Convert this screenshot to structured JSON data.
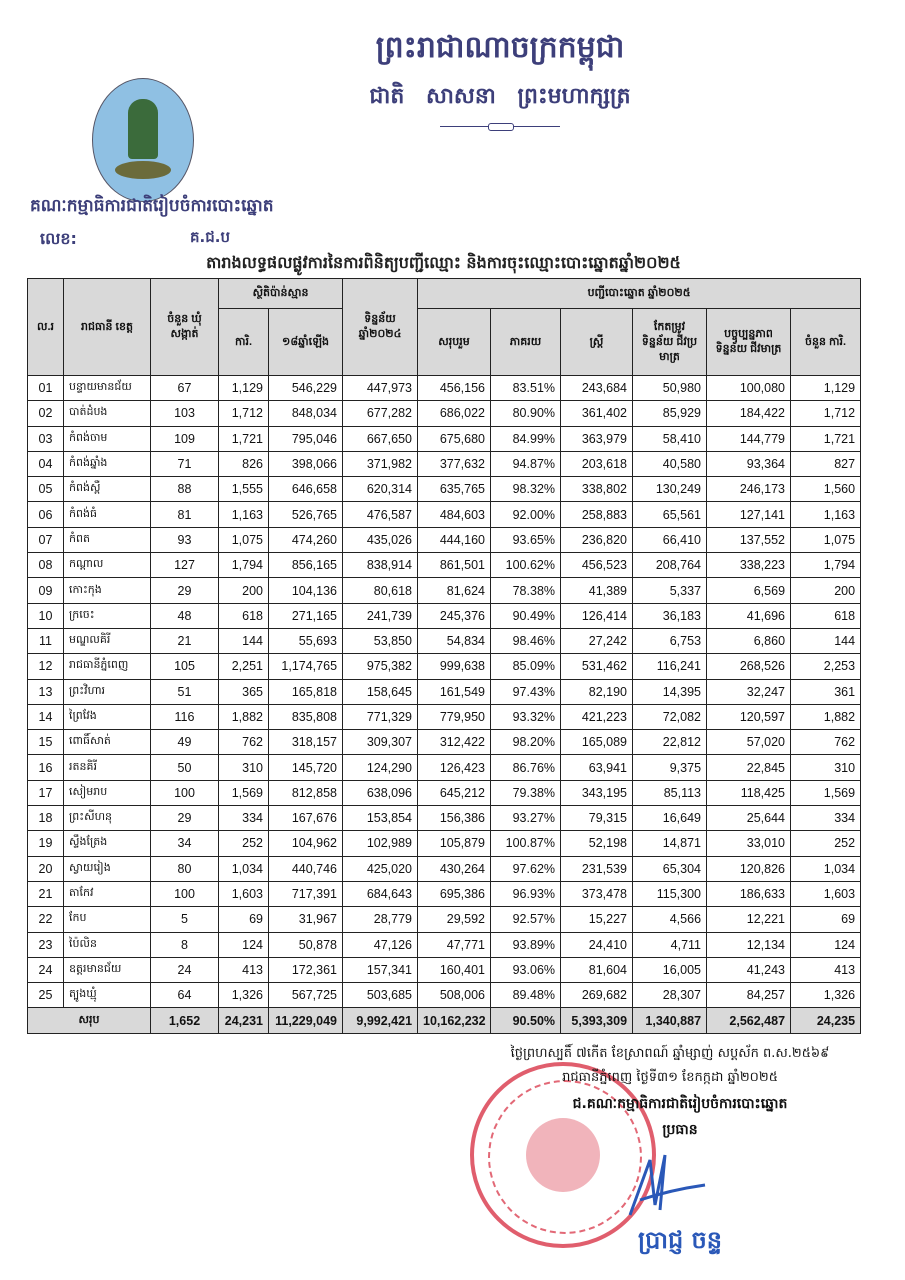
{
  "letterhead": {
    "kingdom": "ព្រះរាជាណាចក្រកម្ពុជា",
    "motto": "ជាតិ សាសនា ព្រះមហាក្សត្រ",
    "organization": "គណៈកម្មាធិការជាតិរៀបចំការបោះឆ្នោត",
    "reference_label": "លេខ:",
    "reference_number": "គ.ជ.ប"
  },
  "title": "តារាងលទ្ធផលផ្លូវការនៃការពិនិត្យបញ្ជីឈ្មោះ និងការចុះឈ្មោះបោះឆ្នោតឆ្នាំ២០២៥",
  "table": {
    "headers": {
      "no": "ល.រ",
      "province": "រាជធានី ខេត្ត",
      "communes": "ចំនួន ឃុំ សង្កាត់",
      "estimate_group": "ស្ថិតិប៉ាន់ស្មាន",
      "estimate_offices": "ការិ.",
      "estimate_18plus": "១៨ឆ្នាំឡើង",
      "data_2024": "ទិន្នន័យ ឆ្នាំ២០២៤",
      "list_group": "បញ្ជីបោះឆ្នោត ឆ្នាំ២០២៥",
      "total": "សរុបរួម",
      "percent": "ភាគរយ",
      "women": "ស្ត្រី",
      "biometric_corrected": "កែតម្រូវ ទិន្នន័យ ជីវប្រមាត្រ",
      "biometric_updated": "បច្ចុប្បន្នភាព ទិន្នន័យ ជីវមាត្រ",
      "offices": "ចំនួន ការិ."
    },
    "rows": [
      [
        "01",
        "បន្ទាយមានជ័យ",
        "67",
        "1,129",
        "546,229",
        "447,973",
        "456,156",
        "83.51%",
        "243,684",
        "50,980",
        "100,080",
        "1,129"
      ],
      [
        "02",
        "បាត់ដំបង",
        "103",
        "1,712",
        "848,034",
        "677,282",
        "686,022",
        "80.90%",
        "361,402",
        "85,929",
        "184,422",
        "1,712"
      ],
      [
        "03",
        "កំពង់ចាម",
        "109",
        "1,721",
        "795,046",
        "667,650",
        "675,680",
        "84.99%",
        "363,979",
        "58,410",
        "144,779",
        "1,721"
      ],
      [
        "04",
        "កំពង់ឆ្នាំង",
        "71",
        "826",
        "398,066",
        "371,982",
        "377,632",
        "94.87%",
        "203,618",
        "40,580",
        "93,364",
        "827"
      ],
      [
        "05",
        "កំពង់ស្ពឺ",
        "88",
        "1,555",
        "646,658",
        "620,314",
        "635,765",
        "98.32%",
        "338,802",
        "130,249",
        "246,173",
        "1,560"
      ],
      [
        "06",
        "កំពង់ធំ",
        "81",
        "1,163",
        "526,765",
        "476,587",
        "484,603",
        "92.00%",
        "258,883",
        "65,561",
        "127,141",
        "1,163"
      ],
      [
        "07",
        "កំពត",
        "93",
        "1,075",
        "474,260",
        "435,026",
        "444,160",
        "93.65%",
        "236,820",
        "66,410",
        "137,552",
        "1,075"
      ],
      [
        "08",
        "កណ្តាល",
        "127",
        "1,794",
        "856,165",
        "838,914",
        "861,501",
        "100.62%",
        "456,523",
        "208,764",
        "338,223",
        "1,794"
      ],
      [
        "09",
        "កោះកុង",
        "29",
        "200",
        "104,136",
        "80,618",
        "81,624",
        "78.38%",
        "41,389",
        "5,337",
        "6,569",
        "200"
      ],
      [
        "10",
        "ក្រចេះ",
        "48",
        "618",
        "271,165",
        "241,739",
        "245,376",
        "90.49%",
        "126,414",
        "36,183",
        "41,696",
        "618"
      ],
      [
        "11",
        "មណ្ឌលគិរី",
        "21",
        "144",
        "55,693",
        "53,850",
        "54,834",
        "98.46%",
        "27,242",
        "6,753",
        "6,860",
        "144"
      ],
      [
        "12",
        "រាជធានីភ្នំពេញ",
        "105",
        "2,251",
        "1,174,765",
        "975,382",
        "999,638",
        "85.09%",
        "531,462",
        "116,241",
        "268,526",
        "2,253"
      ],
      [
        "13",
        "ព្រះវិហារ",
        "51",
        "365",
        "165,818",
        "158,645",
        "161,549",
        "97.43%",
        "82,190",
        "14,395",
        "32,247",
        "361"
      ],
      [
        "14",
        "ព្រៃវែង",
        "116",
        "1,882",
        "835,808",
        "771,329",
        "779,950",
        "93.32%",
        "421,223",
        "72,082",
        "120,597",
        "1,882"
      ],
      [
        "15",
        "ពោធិ៍សាត់",
        "49",
        "762",
        "318,157",
        "309,307",
        "312,422",
        "98.20%",
        "165,089",
        "22,812",
        "57,020",
        "762"
      ],
      [
        "16",
        "រតនគិរី",
        "50",
        "310",
        "145,720",
        "124,290",
        "126,423",
        "86.76%",
        "63,941",
        "9,375",
        "22,845",
        "310"
      ],
      [
        "17",
        "សៀមរាប",
        "100",
        "1,569",
        "812,858",
        "638,096",
        "645,212",
        "79.38%",
        "343,195",
        "85,113",
        "118,425",
        "1,569"
      ],
      [
        "18",
        "ព្រះសីហនុ",
        "29",
        "334",
        "167,676",
        "153,854",
        "156,386",
        "93.27%",
        "79,315",
        "16,649",
        "25,644",
        "334"
      ],
      [
        "19",
        "ស្ទឹងត្រែង",
        "34",
        "252",
        "104,962",
        "102,989",
        "105,879",
        "100.87%",
        "52,198",
        "14,871",
        "33,010",
        "252"
      ],
      [
        "20",
        "ស្វាយរៀង",
        "80",
        "1,034",
        "440,746",
        "425,020",
        "430,264",
        "97.62%",
        "231,539",
        "65,304",
        "120,826",
        "1,034"
      ],
      [
        "21",
        "តាកែវ",
        "100",
        "1,603",
        "717,391",
        "684,643",
        "695,386",
        "96.93%",
        "373,478",
        "115,300",
        "186,633",
        "1,603"
      ],
      [
        "22",
        "កែប",
        "5",
        "69",
        "31,967",
        "28,779",
        "29,592",
        "92.57%",
        "15,227",
        "4,566",
        "12,221",
        "69"
      ],
      [
        "23",
        "ប៉ៃលិន",
        "8",
        "124",
        "50,878",
        "47,126",
        "47,771",
        "93.89%",
        "24,410",
        "4,711",
        "12,134",
        "124"
      ],
      [
        "24",
        "ឧត្តរមានជ័យ",
        "24",
        "413",
        "172,361",
        "157,341",
        "160,401",
        "93.06%",
        "81,604",
        "16,005",
        "41,243",
        "413"
      ],
      [
        "25",
        "ត្បូងឃ្មុំ",
        "64",
        "1,326",
        "567,725",
        "503,685",
        "508,006",
        "89.48%",
        "269,682",
        "28,307",
        "84,257",
        "1,326"
      ]
    ],
    "total": {
      "label": "សរុប",
      "values": [
        "1,652",
        "24,231",
        "11,229,049",
        "9,992,421",
        "10,162,232",
        "90.50%",
        "5,393,309",
        "1,340,887",
        "2,562,487",
        "24,235"
      ]
    }
  },
  "footer": {
    "lunar_date": "ថ្ងៃព្រហស្បតិ៍ ៧កើត ខែស្រាពណ៍ ឆ្នាំម្សាញ់ សប្តស័ក ព.ស.២៥៦៩",
    "solar_date": "រាជធានីភ្នំពេញ ថ្ងៃទី៣១ ខែកក្កដា ឆ្នាំ២០២៥",
    "signer_org": "ជ.គណៈកម្មាធិការជាតិរៀបចំការបោះឆ្នោត",
    "signer_title": "ប្រធាន",
    "signer_name": "ប្រាជ្ញ ចន្ទ"
  },
  "colors": {
    "letterhead": "#3d3f7a",
    "stamp": "#d6283c",
    "signature": "#2a58b8",
    "header_fill": "#d9d9d9"
  }
}
